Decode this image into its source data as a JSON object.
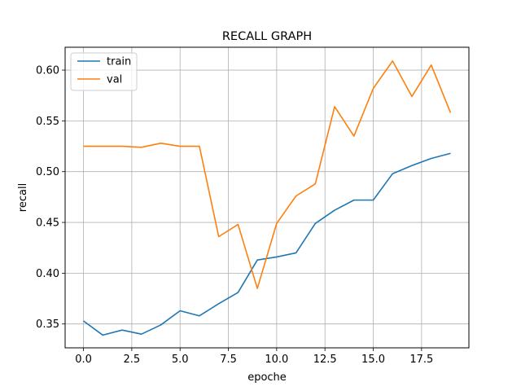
{
  "chart_data": {
    "type": "line",
    "title": "RECALL GRAPH",
    "xlabel": "epoche",
    "ylabel": "recall",
    "xlim": [
      -0.95,
      19.95
    ],
    "ylim": [
      0.3265,
      0.6225
    ],
    "xticks": [
      0,
      2.5,
      5,
      7.5,
      10,
      12.5,
      15,
      17.5
    ],
    "xtick_labels": [
      "0.0",
      "2.5",
      "5.0",
      "7.5",
      "10.0",
      "12.5",
      "15.0",
      "17.5"
    ],
    "yticks": [
      0.35,
      0.4,
      0.45,
      0.5,
      0.55,
      0.6
    ],
    "ytick_labels": [
      "0.35",
      "0.40",
      "0.45",
      "0.50",
      "0.55",
      "0.60"
    ],
    "grid": true,
    "legend_position": "top-left",
    "x": [
      0,
      1,
      2,
      3,
      4,
      5,
      6,
      7,
      8,
      9,
      10,
      11,
      12,
      13,
      14,
      15,
      16,
      17,
      18,
      19
    ],
    "series": [
      {
        "name": "train",
        "color": "#1f77b4",
        "values": [
          0.353,
          0.339,
          0.344,
          0.34,
          0.349,
          0.363,
          0.358,
          0.37,
          0.381,
          0.413,
          0.416,
          0.42,
          0.449,
          0.462,
          0.472,
          0.472,
          0.498,
          0.506,
          0.513,
          0.518
        ]
      },
      {
        "name": "val",
        "color": "#ff7f0e",
        "values": [
          0.525,
          0.525,
          0.525,
          0.524,
          0.528,
          0.525,
          0.525,
          0.436,
          0.448,
          0.385,
          0.449,
          0.476,
          0.488,
          0.564,
          0.535,
          0.582,
          0.609,
          0.574,
          0.605,
          0.558
        ]
      }
    ]
  }
}
